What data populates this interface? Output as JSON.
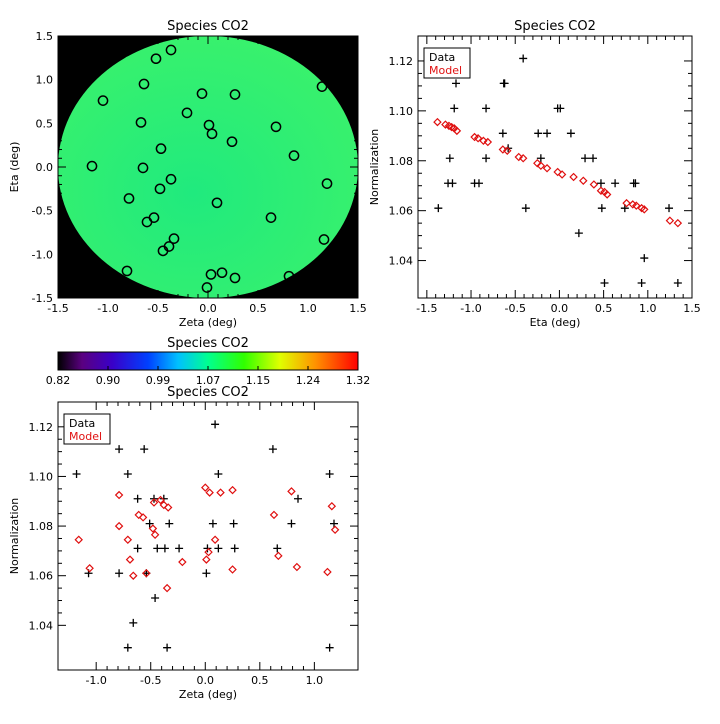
{
  "colors": {
    "data": "#000000",
    "model": "#e01010",
    "field": "#24f07a",
    "outside": "#000000",
    "circle": "#000000"
  },
  "chart_data": [
    {
      "type": "scatter",
      "title": "Species CO2",
      "xlabel": "Zeta (deg)",
      "ylabel": "Eta (deg)",
      "xlim": [
        -1.5,
        1.5
      ],
      "ylim": [
        -1.5,
        1.5
      ],
      "xticks": [
        "-1.5",
        "-1.0",
        "-0.5",
        "0.0",
        "0.5",
        "1.0",
        "1.5"
      ],
      "yticks": [
        "-1.5",
        "-1.0",
        "-0.5",
        "0.0",
        "0.5",
        "1.0",
        "1.5"
      ],
      "background": "colormap field inside a circle of radius 1.5 deg, black outside",
      "marker": "open circle",
      "points": [
        [
          -0.37,
          1.34
        ],
        [
          -0.52,
          1.24
        ],
        [
          -0.64,
          0.95
        ],
        [
          1.14,
          0.92
        ],
        [
          -1.05,
          0.76
        ],
        [
          -0.06,
          0.84
        ],
        [
          0.27,
          0.83
        ],
        [
          -0.21,
          0.62
        ],
        [
          -0.67,
          0.51
        ],
        [
          0.01,
          0.48
        ],
        [
          0.68,
          0.46
        ],
        [
          0.04,
          0.38
        ],
        [
          0.24,
          0.29
        ],
        [
          -0.47,
          0.21
        ],
        [
          0.86,
          0.13
        ],
        [
          -1.16,
          0.01
        ],
        [
          -0.65,
          -0.01
        ],
        [
          -0.37,
          -0.14
        ],
        [
          -0.48,
          -0.25
        ],
        [
          1.19,
          -0.19
        ],
        [
          -0.79,
          -0.36
        ],
        [
          0.09,
          -0.41
        ],
        [
          -0.54,
          -0.58
        ],
        [
          -0.61,
          -0.63
        ],
        [
          0.63,
          -0.58
        ],
        [
          -0.34,
          -0.82
        ],
        [
          1.16,
          -0.83
        ],
        [
          -0.39,
          -0.91
        ],
        [
          -0.45,
          -0.96
        ],
        [
          -0.81,
          -1.19
        ],
        [
          0.14,
          -1.21
        ],
        [
          0.03,
          -1.23
        ],
        [
          0.27,
          -1.27
        ],
        [
          0.81,
          -1.25
        ],
        [
          -0.01,
          -1.38
        ]
      ]
    },
    {
      "type": "scatter",
      "title": "Species CO2",
      "xlabel": "Eta (deg)",
      "ylabel": "Normalization",
      "xlim": [
        -1.6,
        1.5
      ],
      "ylim": [
        1.025,
        1.13
      ],
      "xticks": [
        "-1.5",
        "-1.0",
        "-0.5",
        "0.0",
        "0.5",
        "1.0",
        "1.5"
      ],
      "yticks": [
        "1.04",
        "1.06",
        "1.08",
        "1.10",
        "1.12"
      ],
      "legend": {
        "position": "top-left",
        "entries": [
          "Data",
          "Model"
        ]
      },
      "series": [
        {
          "name": "Data",
          "marker": "plus",
          "points": [
            [
              -1.37,
              1.061
            ],
            [
              -1.26,
              1.071
            ],
            [
              -1.24,
              1.081
            ],
            [
              -1.21,
              1.071
            ],
            [
              -1.19,
              1.101
            ],
            [
              -1.17,
              1.111
            ],
            [
              -0.96,
              1.071
            ],
            [
              -0.91,
              1.071
            ],
            [
              -0.83,
              1.101
            ],
            [
              -0.83,
              1.081
            ],
            [
              -0.64,
              1.091
            ],
            [
              -0.63,
              1.111
            ],
            [
              -0.62,
              1.111
            ],
            [
              -0.58,
              1.085
            ],
            [
              -0.41,
              1.121
            ],
            [
              -0.38,
              1.061
            ],
            [
              -0.24,
              1.091
            ],
            [
              -0.21,
              1.081
            ],
            [
              -0.14,
              1.091
            ],
            [
              -0.02,
              1.101
            ],
            [
              0.01,
              1.101
            ],
            [
              0.13,
              1.091
            ],
            [
              0.22,
              1.051
            ],
            [
              0.29,
              1.081
            ],
            [
              0.38,
              1.081
            ],
            [
              0.47,
              1.071
            ],
            [
              0.48,
              1.061
            ],
            [
              0.51,
              1.031
            ],
            [
              0.63,
              1.071
            ],
            [
              0.74,
              1.061
            ],
            [
              0.84,
              1.071
            ],
            [
              0.86,
              1.071
            ],
            [
              0.93,
              1.031
            ],
            [
              0.96,
              1.041
            ],
            [
              1.24,
              1.061
            ],
            [
              1.34,
              1.031
            ]
          ]
        },
        {
          "name": "Model",
          "marker": "diamond",
          "points": [
            [
              -1.38,
              1.0955
            ],
            [
              -1.29,
              1.0945
            ],
            [
              -1.25,
              1.094
            ],
            [
              -1.22,
              1.0935
            ],
            [
              -1.19,
              1.093
            ],
            [
              -1.16,
              1.092
            ],
            [
              -0.96,
              1.0895
            ],
            [
              -0.92,
              1.089
            ],
            [
              -0.86,
              1.088
            ],
            [
              -0.81,
              1.0875
            ],
            [
              -0.64,
              1.0845
            ],
            [
              -0.59,
              1.084
            ],
            [
              -0.46,
              1.0815
            ],
            [
              -0.41,
              1.081
            ],
            [
              -0.25,
              1.079
            ],
            [
              -0.21,
              1.078
            ],
            [
              -0.14,
              1.077
            ],
            [
              -0.02,
              1.0755
            ],
            [
              0.03,
              1.0745
            ],
            [
              0.16,
              1.0735
            ],
            [
              0.27,
              1.072
            ],
            [
              0.39,
              1.0705
            ],
            [
              0.47,
              1.068
            ],
            [
              0.51,
              1.0675
            ],
            [
              0.54,
              1.0665
            ],
            [
              0.76,
              1.063
            ],
            [
              0.83,
              1.0625
            ],
            [
              0.87,
              1.062
            ],
            [
              0.93,
              1.061
            ],
            [
              0.96,
              1.0605
            ],
            [
              1.25,
              1.056
            ],
            [
              1.34,
              1.055
            ]
          ]
        }
      ]
    },
    {
      "type": "colorbar",
      "title": "Species CO2",
      "ticks": [
        "0.82",
        "0.90",
        "0.99",
        "1.07",
        "1.15",
        "1.24",
        "1.32"
      ],
      "range": [
        0.82,
        1.32
      ],
      "colormap": "rainbow: black, purple, blue, cyan, green, yellow, orange, red"
    },
    {
      "type": "scatter",
      "title": "Species CO2",
      "xlabel": "Zeta (deg)",
      "ylabel": "Normalization",
      "xlim": [
        -1.35,
        1.4
      ],
      "ylim": [
        1.022,
        1.13
      ],
      "xticks": [
        "-1.0",
        "-0.5",
        "0.0",
        "0.5",
        "1.0"
      ],
      "yticks": [
        "1.04",
        "1.06",
        "1.08",
        "1.10",
        "1.12"
      ],
      "legend": {
        "position": "top-left",
        "entries": [
          "Data",
          "Model"
        ]
      },
      "series": [
        {
          "name": "Data",
          "marker": "plus",
          "points": [
            [
              -1.18,
              1.101
            ],
            [
              -1.07,
              1.061
            ],
            [
              -0.79,
              1.111
            ],
            [
              -0.79,
              1.061
            ],
            [
              -0.71,
              1.101
            ],
            [
              -0.71,
              1.031
            ],
            [
              -0.66,
              1.041
            ],
            [
              -0.62,
              1.091
            ],
            [
              -0.62,
              1.071
            ],
            [
              -0.56,
              1.111
            ],
            [
              -0.54,
              1.061
            ],
            [
              -0.51,
              1.081
            ],
            [
              -0.47,
              1.091
            ],
            [
              -0.46,
              1.051
            ],
            [
              -0.44,
              1.071
            ],
            [
              -0.38,
              1.091
            ],
            [
              -0.37,
              1.071
            ],
            [
              -0.35,
              1.031
            ],
            [
              -0.33,
              1.081
            ],
            [
              -0.24,
              1.071
            ],
            [
              0.02,
              1.071
            ],
            [
              0.01,
              1.061
            ],
            [
              0.07,
              1.081
            ],
            [
              0.09,
              1.121
            ],
            [
              0.12,
              1.101
            ],
            [
              0.12,
              1.071
            ],
            [
              0.26,
              1.081
            ],
            [
              0.27,
              1.071
            ],
            [
              0.62,
              1.111
            ],
            [
              0.66,
              1.071
            ],
            [
              0.79,
              1.081
            ],
            [
              0.85,
              1.091
            ],
            [
              1.14,
              1.101
            ],
            [
              1.14,
              1.031
            ],
            [
              1.18,
              1.081
            ]
          ]
        },
        {
          "name": "Model",
          "marker": "diamond",
          "points": [
            [
              -1.16,
              1.0745
            ],
            [
              -1.06,
              1.063
            ],
            [
              -0.79,
              1.0925
            ],
            [
              -0.79,
              1.08
            ],
            [
              -0.71,
              1.0745
            ],
            [
              -0.69,
              1.0665
            ],
            [
              -0.66,
              1.06
            ],
            [
              -0.61,
              1.0845
            ],
            [
              -0.57,
              1.0835
            ],
            [
              -0.54,
              1.061
            ],
            [
              -0.48,
              1.079
            ],
            [
              -0.47,
              1.0895
            ],
            [
              -0.46,
              1.0765
            ],
            [
              -0.41,
              1.0905
            ],
            [
              -0.38,
              1.0885
            ],
            [
              -0.35,
              1.055
            ],
            [
              -0.34,
              1.0875
            ],
            [
              -0.21,
              1.0655
            ],
            [
              0.0,
              1.0955
            ],
            [
              0.01,
              1.0665
            ],
            [
              0.03,
              1.0695
            ],
            [
              0.04,
              1.0935
            ],
            [
              0.09,
              1.0745
            ],
            [
              0.14,
              1.0935
            ],
            [
              0.25,
              1.0625
            ],
            [
              0.25,
              1.0945
            ],
            [
              0.63,
              1.0845
            ],
            [
              0.67,
              1.068
            ],
            [
              0.79,
              1.094
            ],
            [
              0.84,
              1.0635
            ],
            [
              1.12,
              1.0615
            ],
            [
              1.16,
              1.088
            ],
            [
              1.19,
              1.0785
            ]
          ]
        }
      ]
    }
  ]
}
